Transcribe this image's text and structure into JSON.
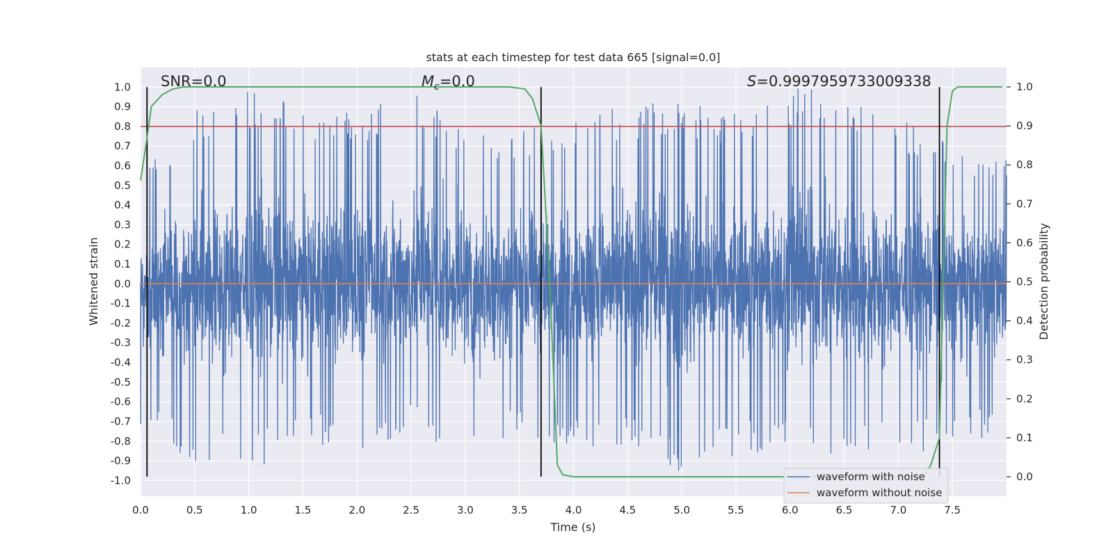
{
  "chart_data": {
    "type": "line",
    "title": "stats at each timestep for test data 665 [signal=0.0]",
    "xlabel": "Time (s)",
    "ylabel": "Whitened strain",
    "y2label": "Detection probability",
    "xlim": [
      0.0,
      8.0
    ],
    "ylim": [
      -1.08,
      1.1
    ],
    "y2lim": [
      -0.05,
      1.05
    ],
    "x_ticks": [
      "0.0",
      "0.5",
      "1.0",
      "1.5",
      "2.0",
      "2.5",
      "3.0",
      "3.5",
      "4.0",
      "4.5",
      "5.0",
      "5.5",
      "6.0",
      "6.5",
      "7.0",
      "7.5"
    ],
    "y_ticks": [
      "1.0",
      "0.9",
      "0.8",
      "0.7",
      "0.6",
      "0.5",
      "0.4",
      "0.3",
      "0.2",
      "0.1",
      "0.0",
      "-0.1",
      "-0.2",
      "-0.3",
      "-0.4",
      "-0.5",
      "-0.6",
      "-0.7",
      "-0.8",
      "-0.9",
      "-1.0"
    ],
    "y2_ticks": [
      "1.0",
      "0.9",
      "0.8",
      "0.7",
      "0.6",
      "0.5",
      "0.4",
      "0.3",
      "0.2",
      "0.1",
      "0.0"
    ],
    "grid": true,
    "annotations": {
      "snr": "SNR=0.0",
      "mc_symbol": "M",
      "mc_sub": "c",
      "mc_value": "=0.0",
      "s_symbol": "S",
      "s_value": "=0.9997959733009338"
    },
    "threshold_line": {
      "axis": "y",
      "value": 0.8,
      "color": "#c44e52"
    },
    "vertical_markers": [
      0.06,
      3.7,
      7.38
    ],
    "noise_envelope": {
      "x": [
        0.0,
        0.5,
        1.0,
        1.5,
        2.0,
        2.5,
        3.0,
        3.5,
        4.0,
        4.5,
        5.0,
        5.5,
        6.0,
        6.5,
        7.0,
        7.5,
        8.0
      ],
      "upper": [
        0.55,
        0.9,
        0.98,
        0.93,
        0.86,
        1.0,
        0.82,
        0.78,
        0.85,
        0.92,
        0.92,
        0.88,
        1.0,
        1.0,
        0.84,
        0.72,
        0.63
      ],
      "lower": [
        -0.75,
        -0.91,
        -0.97,
        -0.82,
        -0.85,
        -0.76,
        -0.91,
        -0.78,
        -0.83,
        -0.84,
        -0.98,
        -0.87,
        -0.86,
        -0.87,
        -0.87,
        -0.85,
        -0.75
      ]
    },
    "series": [
      {
        "name": "waveform with noise",
        "color": "#4c72b0",
        "description": "whitened noisy strain"
      },
      {
        "name": "waveform without noise",
        "color": "#dd8452",
        "x": [
          0.0,
          8.0
        ],
        "y": [
          0.0,
          0.0
        ]
      },
      {
        "name": "detection probability",
        "color": "#55a868",
        "axis": "y2",
        "x": [
          0.0,
          0.05,
          0.1,
          0.2,
          0.3,
          0.4,
          0.6,
          1.0,
          2.0,
          3.0,
          3.4,
          3.55,
          3.62,
          3.7,
          3.78,
          3.85,
          3.9,
          4.0,
          5.0,
          6.0,
          7.0,
          7.25,
          7.3,
          7.38,
          7.45,
          7.5,
          7.55,
          7.7,
          7.96
        ],
        "y": [
          0.76,
          0.85,
          0.95,
          0.98,
          0.995,
          1.0,
          1.0,
          1.0,
          1.0,
          1.0,
          1.0,
          0.995,
          0.97,
          0.9,
          0.5,
          0.03,
          0.005,
          0.0,
          0.0,
          0.0,
          0.0,
          0.005,
          0.03,
          0.1,
          0.9,
          0.99,
          1.0,
          1.0,
          1.0
        ]
      }
    ],
    "legend": {
      "position": "lower-right",
      "entries": [
        {
          "label": "waveform with noise",
          "color": "#4c72b0"
        },
        {
          "label": "waveform without noise",
          "color": "#dd8452"
        }
      ]
    }
  }
}
